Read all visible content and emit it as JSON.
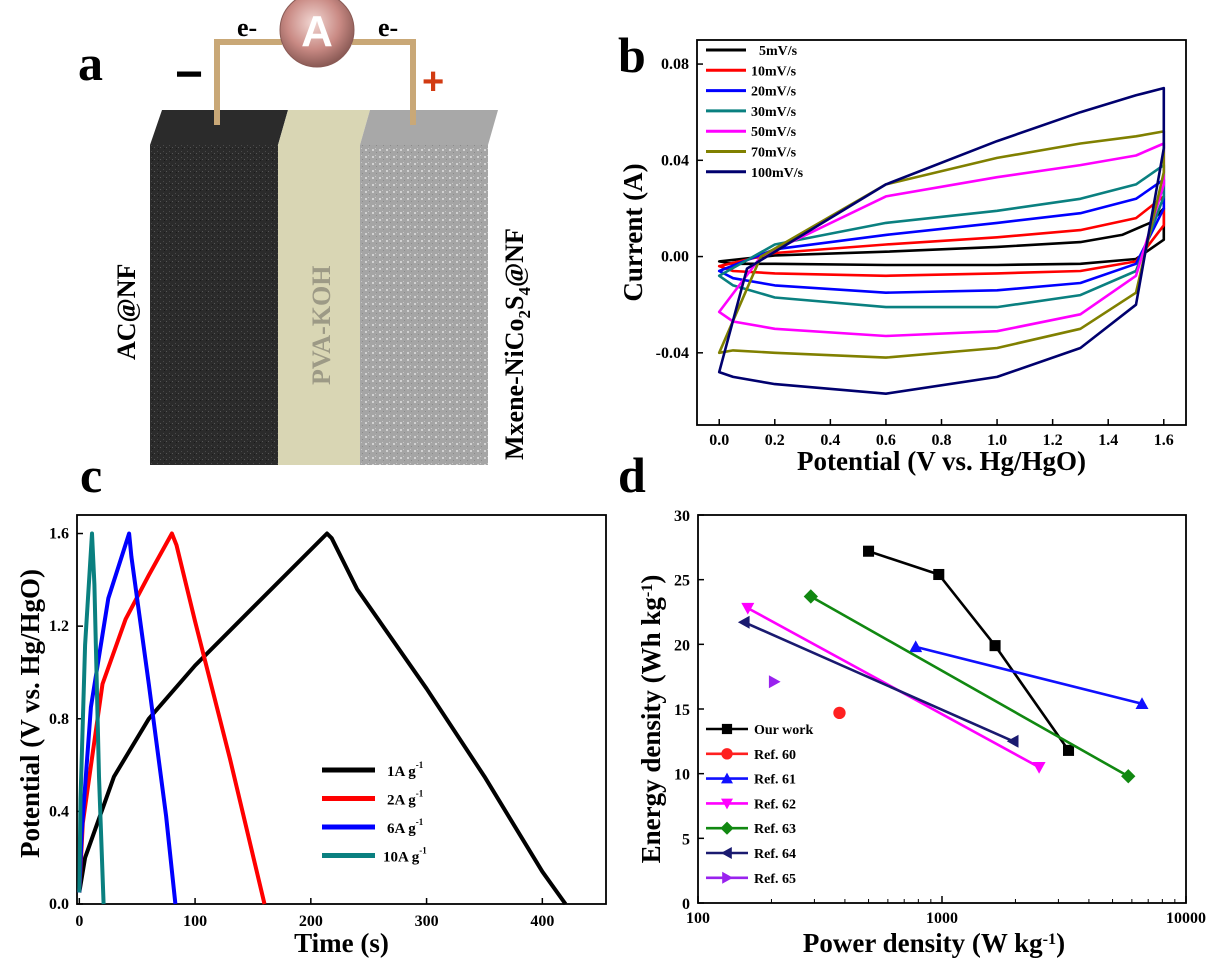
{
  "panel_labels": [
    "a",
    "b",
    "c",
    "d"
  ],
  "device": {
    "left_label": "AC@NF",
    "middle_label": "PVA-KOH",
    "right_label": "Mxene-NiCo2S4@NF",
    "minus": "−",
    "plus": "+",
    "electron": "e-",
    "meter": "A",
    "colors": {
      "left": "#2b2b2b",
      "middle": "#d9d6b4",
      "right": "#a8a8a8",
      "wire": "#c9a877",
      "meter": "#c98a84",
      "plus": "#d23b12"
    }
  },
  "chart_data": [
    {
      "id": "b",
      "type": "line",
      "xlabel": "Potential (V vs. Hg/HgO)",
      "ylabel": "Current (A)",
      "xlim": [
        -0.08,
        1.68
      ],
      "ylim": [
        -0.07,
        0.09
      ],
      "xticks": [
        "0.0",
        "0.2",
        "0.4",
        "0.6",
        "0.8",
        "1.0",
        "1.2",
        "1.4",
        "1.6"
      ],
      "yticks": [
        "-0.04",
        "0.00",
        "0.04",
        "0.08"
      ],
      "legend_position": "top-left",
      "series": [
        {
          "name": "5mV/s",
          "color": "#000000",
          "x": [
            0,
            0.2,
            0.6,
            1.0,
            1.3,
            1.45,
            1.55,
            1.6,
            1.6,
            1.5,
            1.3,
            1.0,
            0.6,
            0.2,
            0.05,
            0
          ],
          "y": [
            -0.002,
            0.0005,
            0.002,
            0.004,
            0.006,
            0.009,
            0.014,
            0.02,
            0.007,
            -0.001,
            -0.003,
            -0.0035,
            -0.0035,
            -0.003,
            -0.003,
            -0.002
          ]
        },
        {
          "name": "10mV/s",
          "color": "#ff0000",
          "x": [
            0,
            0.2,
            0.6,
            1.0,
            1.3,
            1.5,
            1.6,
            1.6,
            1.5,
            1.3,
            1.0,
            0.6,
            0.2,
            0.05,
            0
          ],
          "y": [
            -0.004,
            0.0015,
            0.005,
            0.008,
            0.011,
            0.016,
            0.025,
            0.013,
            -0.002,
            -0.006,
            -0.007,
            -0.008,
            -0.007,
            -0.006,
            -0.004
          ]
        },
        {
          "name": "20mV/s",
          "color": "#0000ff",
          "x": [
            0,
            0.2,
            0.6,
            1.0,
            1.3,
            1.5,
            1.6,
            1.6,
            1.5,
            1.3,
            1.0,
            0.6,
            0.2,
            0.05,
            0
          ],
          "y": [
            -0.006,
            0.003,
            0.009,
            0.014,
            0.018,
            0.024,
            0.032,
            0.02,
            -0.003,
            -0.011,
            -0.014,
            -0.015,
            -0.012,
            -0.009,
            -0.006
          ]
        },
        {
          "name": "30mV/s",
          "color": "#0a8080",
          "x": [
            0,
            0.2,
            0.6,
            1.0,
            1.3,
            1.5,
            1.6,
            1.6,
            1.5,
            1.3,
            1.0,
            0.6,
            0.2,
            0.05,
            0
          ],
          "y": [
            -0.008,
            0.005,
            0.014,
            0.019,
            0.024,
            0.03,
            0.038,
            0.025,
            -0.006,
            -0.016,
            -0.021,
            -0.021,
            -0.017,
            -0.012,
            -0.008
          ]
        },
        {
          "name": "50mV/s",
          "color": "#ff00ff",
          "x": [
            0,
            0.15,
            0.6,
            1.0,
            1.3,
            1.5,
            1.6,
            1.6,
            1.5,
            1.3,
            1.0,
            0.6,
            0.2,
            0.05,
            0
          ],
          "y": [
            -0.023,
            0.0,
            0.025,
            0.033,
            0.038,
            0.042,
            0.047,
            0.03,
            -0.008,
            -0.024,
            -0.031,
            -0.033,
            -0.03,
            -0.027,
            -0.023
          ]
        },
        {
          "name": "70mV/s",
          "color": "#808000",
          "x": [
            0,
            0.15,
            0.6,
            1.0,
            1.3,
            1.5,
            1.6,
            1.6,
            1.5,
            1.3,
            1.0,
            0.6,
            0.2,
            0.05,
            0
          ],
          "y": [
            -0.04,
            0.0,
            0.03,
            0.041,
            0.047,
            0.05,
            0.052,
            0.035,
            -0.015,
            -0.03,
            -0.038,
            -0.042,
            -0.04,
            -0.039,
            -0.04
          ]
        },
        {
          "name": "100mV/s",
          "color": "#00006e",
          "x": [
            0,
            0.1,
            0.6,
            1.0,
            1.3,
            1.5,
            1.6,
            1.6,
            1.5,
            1.3,
            1.0,
            0.6,
            0.2,
            0.05,
            0
          ],
          "y": [
            -0.048,
            -0.005,
            0.03,
            0.048,
            0.06,
            0.067,
            0.07,
            0.045,
            -0.02,
            -0.038,
            -0.05,
            -0.057,
            -0.053,
            -0.05,
            -0.048
          ]
        }
      ]
    },
    {
      "id": "c",
      "type": "line",
      "xlabel": "Time (s)",
      "ylabel": "Potential (V vs. Hg/HgO)",
      "xlim": [
        -2,
        455
      ],
      "ylim": [
        0,
        1.68
      ],
      "xticks": [
        "0",
        "100",
        "200",
        "300",
        "400"
      ],
      "yticks": [
        "0.0",
        "0.4",
        "0.8",
        "1.2",
        "1.6"
      ],
      "legend_position": "bottom-right",
      "series": [
        {
          "name": "1A g-1",
          "color": "#000000",
          "x": [
            0,
            5,
            30,
            60,
            100,
            150,
            214,
            218,
            240,
            300,
            350,
            400,
            420
          ],
          "y": [
            0.05,
            0.2,
            0.55,
            0.8,
            1.03,
            1.28,
            1.6,
            1.58,
            1.36,
            0.93,
            0.55,
            0.14,
            0
          ]
        },
        {
          "name": "2A g-1",
          "color": "#ff0000",
          "x": [
            0,
            3,
            20,
            40,
            60,
            80,
            84,
            100,
            130,
            160
          ],
          "y": [
            0.05,
            0.35,
            0.95,
            1.23,
            1.42,
            1.6,
            1.55,
            1.22,
            0.63,
            0
          ]
        },
        {
          "name": "6A g-1",
          "color": "#0000ff",
          "x": [
            0,
            2,
            10,
            25,
            43,
            45,
            60,
            75,
            83
          ],
          "y": [
            0.05,
            0.3,
            0.85,
            1.32,
            1.6,
            1.5,
            0.95,
            0.38,
            0
          ]
        },
        {
          "name": "10A g-1",
          "color": "#0a8080",
          "x": [
            0,
            1,
            5,
            11,
            13,
            17,
            21
          ],
          "y": [
            0.05,
            0.45,
            1.12,
            1.6,
            1.38,
            0.55,
            0
          ]
        }
      ]
    },
    {
      "id": "d",
      "type": "line",
      "xlabel": "Power density (W kg-1)",
      "ylabel": "Energy density (Wh kg-1)",
      "xscale": "log",
      "xlim": [
        100,
        10000
      ],
      "ylim": [
        0,
        30
      ],
      "xticks": [
        "100",
        "1000",
        "10000"
      ],
      "yticks": [
        "0",
        "5",
        "10",
        "15",
        "20",
        "25",
        "30"
      ],
      "legend_position": "bottom-left",
      "series": [
        {
          "name": "Our work",
          "color": "#000000",
          "marker": "square",
          "x": [
            500,
            970,
            1650,
            3300
          ],
          "y": [
            27.2,
            25.4,
            19.9,
            11.8
          ]
        },
        {
          "name": "Ref. 60",
          "color": "#ff2020",
          "marker": "circle",
          "x": [
            380
          ],
          "y": [
            14.7
          ]
        },
        {
          "name": "Ref. 61",
          "color": "#1010ff",
          "marker": "triangle-up",
          "x": [
            780,
            6600
          ],
          "y": [
            19.8,
            15.4
          ]
        },
        {
          "name": "Ref. 62",
          "color": "#ff00ff",
          "marker": "triangle-down",
          "x": [
            160,
            2500
          ],
          "y": [
            22.8,
            10.5
          ]
        },
        {
          "name": "Ref. 63",
          "color": "#118811",
          "marker": "diamond",
          "x": [
            290,
            5800
          ],
          "y": [
            23.7,
            9.8
          ]
        },
        {
          "name": "Ref. 64",
          "color": "#1a1a70",
          "marker": "triangle-left",
          "x": [
            155,
            1960
          ],
          "y": [
            21.7,
            12.5
          ]
        },
        {
          "name": "Ref. 65",
          "color": "#9922ee",
          "marker": "triangle-right",
          "x": [
            205
          ],
          "y": [
            17.1
          ]
        }
      ]
    }
  ]
}
